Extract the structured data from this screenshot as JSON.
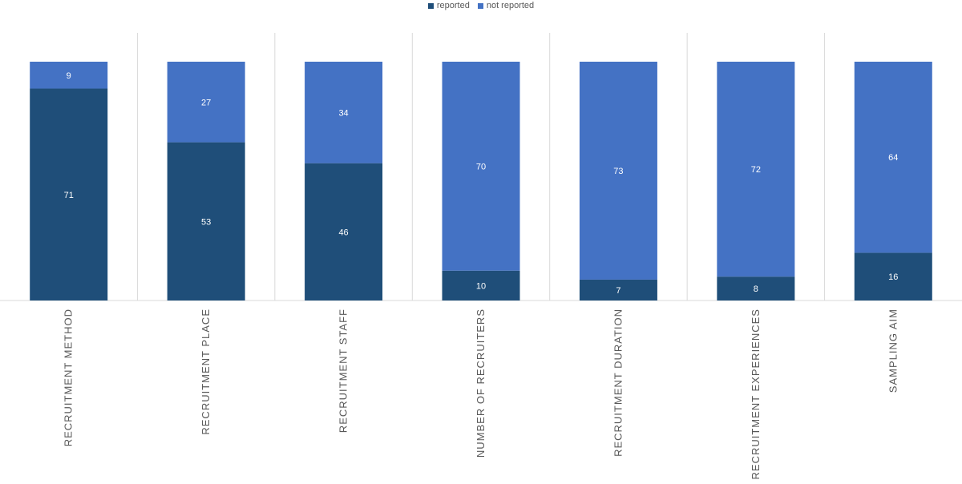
{
  "chart_data": {
    "type": "bar",
    "stacked": true,
    "categories": [
      "RECRUITMENT METHOD",
      "RECRUITMENT PLACE",
      "RECRUITMENT STAFF",
      "NUMBER OF RECRUITERS",
      "RECRUITMENT DURATION",
      "RECRUITMENT EXPERIENCES",
      "SAMPLING AIM"
    ],
    "series": [
      {
        "name": "reported",
        "values": [
          71,
          53,
          46,
          10,
          7,
          8,
          16
        ],
        "color": "#1f4e79"
      },
      {
        "name": "not reported",
        "values": [
          9,
          27,
          34,
          70,
          73,
          72,
          64
        ],
        "color": "#4472c4"
      }
    ],
    "ylim": [
      0,
      80
    ],
    "grid": "vertical category separators",
    "legend_position": "top-center",
    "title": "",
    "xlabel": "",
    "ylabel": ""
  }
}
